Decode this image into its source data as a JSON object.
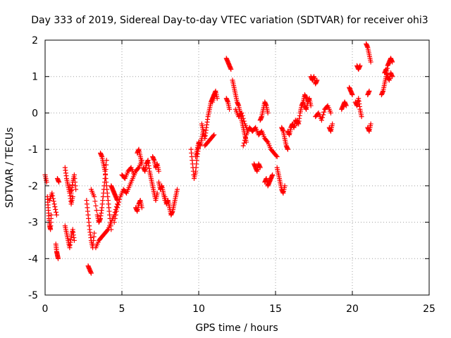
{
  "chart_data": {
    "type": "scatter",
    "title": "Day 333 of 2019, Sidereal Day-to-day VTEC variation (SDTVAR) for receiver ohi3",
    "xlabel": "GPS time / hours",
    "ylabel": "SDTVAR / TECUs",
    "xlim": [
      0,
      25
    ],
    "ylim": [
      -5,
      2
    ],
    "xticks": [
      "0",
      "5",
      "10",
      "15",
      "20",
      "25"
    ],
    "yticks": [
      "-5",
      "-4",
      "-3",
      "-2",
      "-1",
      "0",
      "1",
      "2"
    ],
    "grid": true,
    "marker": "plus",
    "color": "#ff0000",
    "segments": [
      {
        "x": [
          0.0,
          0.1
        ],
        "y": [
          -1.7,
          -1.9
        ]
      },
      {
        "x": [
          0.15,
          0.2,
          0.25,
          0.3,
          0.35,
          0.4
        ],
        "y": [
          -2.3,
          -2.6,
          -2.9,
          -3.1,
          -3.2,
          -2.8
        ]
      },
      {
        "x": [
          0.3,
          0.45,
          0.6,
          0.75
        ],
        "y": [
          -2.4,
          -2.2,
          -2.5,
          -2.8
        ]
      },
      {
        "x": [
          0.7,
          0.75,
          0.8,
          0.85
        ],
        "y": [
          -3.6,
          -3.8,
          -3.9,
          -4.0
        ]
      },
      {
        "x": [
          0.8,
          0.9
        ],
        "y": [
          -1.8,
          -1.9
        ]
      },
      {
        "x": [
          1.3,
          1.4,
          1.5,
          1.6,
          1.7,
          1.8
        ],
        "y": [
          -1.5,
          -1.8,
          -2.0,
          -2.2,
          -2.5,
          -2.3
        ]
      },
      {
        "x": [
          1.3,
          1.4,
          1.5,
          1.6,
          1.7,
          1.8,
          1.9
        ],
        "y": [
          -3.1,
          -3.3,
          -3.5,
          -3.7,
          -3.4,
          -3.2,
          -3.5
        ]
      },
      {
        "x": [
          1.6,
          1.7,
          1.8,
          1.9,
          2.0
        ],
        "y": [
          -2.0,
          -2.2,
          -1.9,
          -1.7,
          -2.1
        ]
      },
      {
        "x": [
          2.8,
          2.9,
          3.0
        ],
        "y": [
          -4.2,
          -4.3,
          -4.4
        ]
      },
      {
        "x": [
          2.7,
          2.8,
          2.9,
          3.0,
          3.1,
          3.2
        ],
        "y": [
          -2.4,
          -2.8,
          -3.2,
          -3.5,
          -3.7,
          -3.3
        ]
      },
      {
        "x": [
          3.0,
          3.2,
          3.4,
          3.5,
          3.6,
          3.7,
          3.8,
          3.9,
          4.0
        ],
        "y": [
          -2.1,
          -2.3,
          -2.8,
          -3.0,
          -2.9,
          -2.6,
          -2.2,
          -1.8,
          -1.3
        ]
      },
      {
        "x": [
          3.6,
          3.7,
          3.8,
          3.9,
          4.0,
          4.1,
          4.2,
          4.3
        ],
        "y": [
          -1.1,
          -1.2,
          -1.4,
          -1.6,
          -2.0,
          -2.4,
          -2.8,
          -3.2
        ]
      },
      {
        "x": [
          3.3,
          3.5,
          3.7,
          3.9,
          4.1,
          4.3,
          4.5,
          4.7
        ],
        "y": [
          -3.7,
          -3.5,
          -3.4,
          -3.3,
          -3.2,
          -3.0,
          -2.8,
          -2.5
        ]
      },
      {
        "x": [
          4.3,
          4.4,
          4.5,
          4.6,
          4.7
        ],
        "y": [
          -2.0,
          -2.1,
          -2.2,
          -2.3,
          -2.4
        ]
      },
      {
        "x": [
          4.5,
          4.7,
          4.9,
          5.1,
          5.3,
          5.5,
          5.7,
          5.9,
          6.1,
          6.3
        ],
        "y": [
          -3.0,
          -2.6,
          -2.3,
          -2.1,
          -2.2,
          -2.0,
          -1.8,
          -1.6,
          -1.5,
          -1.3
        ]
      },
      {
        "x": [
          5.0,
          5.2,
          5.4,
          5.6,
          5.8
        ],
        "y": [
          -1.7,
          -1.8,
          -1.6,
          -1.5,
          -1.7
        ]
      },
      {
        "x": [
          6.0,
          6.1,
          6.2,
          6.3
        ],
        "y": [
          -1.1,
          -1.0,
          -1.2,
          -1.4
        ]
      },
      {
        "x": [
          5.9,
          6.0,
          6.1,
          6.2,
          6.3
        ],
        "y": [
          -2.6,
          -2.7,
          -2.5,
          -2.4,
          -2.6
        ]
      },
      {
        "x": [
          6.4,
          6.5,
          6.6,
          6.7,
          6.8,
          6.9,
          7.0,
          7.1,
          7.2,
          7.3
        ],
        "y": [
          -1.5,
          -1.6,
          -1.4,
          -1.3,
          -1.6,
          -1.8,
          -2.0,
          -2.2,
          -2.4,
          -2.2
        ]
      },
      {
        "x": [
          7.0,
          7.1,
          7.2,
          7.3,
          7.4
        ],
        "y": [
          -1.2,
          -1.3,
          -1.5,
          -1.4,
          -1.6
        ]
      },
      {
        "x": [
          7.4,
          7.5,
          7.6,
          7.7,
          7.8
        ],
        "y": [
          -1.9,
          -2.1,
          -2.0,
          -2.2,
          -2.4
        ]
      },
      {
        "x": [
          7.8,
          7.9,
          8.0,
          8.1,
          8.2,
          8.3,
          8.4,
          8.5,
          8.6
        ],
        "y": [
          -2.3,
          -2.5,
          -2.4,
          -2.6,
          -2.8,
          -2.7,
          -2.5,
          -2.3,
          -2.1
        ]
      },
      {
        "x": [
          9.5,
          9.6,
          9.7,
          9.8,
          9.9,
          10.0
        ],
        "y": [
          -1.0,
          -1.4,
          -1.8,
          -1.6,
          -1.2,
          -0.9
        ]
      },
      {
        "x": [
          9.8,
          9.9,
          10.0,
          10.1,
          10.2,
          10.3
        ],
        "y": [
          -1.2,
          -1.0,
          -0.8,
          -0.9,
          -0.7,
          -0.5
        ]
      },
      {
        "x": [
          10.2,
          10.3,
          10.4,
          10.5,
          10.6,
          10.7,
          10.8,
          10.9,
          11.0
        ],
        "y": [
          -0.3,
          -0.5,
          -0.7,
          -0.4,
          -0.1,
          0.1,
          0.3,
          0.4,
          0.5
        ]
      },
      {
        "x": [
          10.9,
          11.0,
          11.1,
          11.2
        ],
        "y": [
          0.3,
          0.5,
          0.6,
          0.4
        ]
      },
      {
        "x": [
          10.4,
          10.6,
          10.8,
          11.0
        ],
        "y": [
          -0.9,
          -0.8,
          -0.7,
          -0.6
        ]
      },
      {
        "x": [
          11.8,
          11.9,
          12.0,
          12.1
        ],
        "y": [
          1.5,
          1.4,
          1.3,
          1.2
        ]
      },
      {
        "x": [
          11.8,
          11.9,
          12.0
        ],
        "y": [
          0.4,
          0.3,
          0.1
        ]
      },
      {
        "x": [
          12.2,
          12.3,
          12.4,
          12.5,
          12.6,
          12.7,
          12.8,
          12.9,
          13.0,
          13.1
        ],
        "y": [
          0.9,
          0.7,
          0.5,
          0.3,
          0.2,
          0.0,
          -0.2,
          -0.4,
          -0.6,
          -0.8
        ]
      },
      {
        "x": [
          12.4,
          12.6,
          12.8,
          13.0,
          13.2
        ],
        "y": [
          0.1,
          -0.1,
          0.0,
          -0.3,
          -0.5
        ]
      },
      {
        "x": [
          12.9,
          13.1,
          13.3,
          13.5
        ],
        "y": [
          -0.9,
          -0.6,
          -0.4,
          -0.5
        ]
      },
      {
        "x": [
          13.6,
          13.7,
          13.8,
          13.9,
          14.0
        ],
        "y": [
          -1.4,
          -1.5,
          -1.6,
          -1.4,
          -1.5
        ]
      },
      {
        "x": [
          13.5,
          13.7,
          13.9,
          14.1,
          14.3,
          14.5,
          14.7,
          14.9,
          15.1
        ],
        "y": [
          -0.5,
          -0.4,
          -0.6,
          -0.5,
          -0.7,
          -0.8,
          -1.0,
          -1.1,
          -1.2
        ]
      },
      {
        "x": [
          14.0,
          14.1,
          14.2,
          14.3,
          14.4,
          14.5
        ],
        "y": [
          -0.2,
          -0.1,
          0.1,
          0.3,
          0.2,
          0.0
        ]
      },
      {
        "x": [
          14.3,
          14.4,
          14.5,
          14.6,
          14.7,
          14.8
        ],
        "y": [
          -1.9,
          -1.8,
          -2.0,
          -1.9,
          -1.8,
          -1.7
        ]
      },
      {
        "x": [
          15.1,
          15.2,
          15.3,
          15.4,
          15.5,
          15.6
        ],
        "y": [
          -1.5,
          -1.7,
          -1.9,
          -2.1,
          -2.2,
          -2.0
        ]
      },
      {
        "x": [
          15.4,
          15.5,
          15.6,
          15.7,
          15.8
        ],
        "y": [
          -0.4,
          -0.5,
          -0.7,
          -0.9,
          -1.0
        ]
      },
      {
        "x": [
          15.8,
          15.9,
          16.0,
          16.1,
          16.2,
          16.3,
          16.4
        ],
        "y": [
          -0.5,
          -0.6,
          -0.4,
          -0.3,
          -0.4,
          -0.2,
          -0.3
        ]
      },
      {
        "x": [
          16.4,
          16.5,
          16.6,
          16.7,
          16.8,
          16.9,
          17.0
        ],
        "y": [
          -0.2,
          -0.3,
          0.0,
          0.2,
          0.3,
          0.5,
          0.4
        ]
      },
      {
        "x": [
          16.9,
          17.0,
          17.1,
          17.2,
          17.3
        ],
        "y": [
          0.2,
          0.1,
          0.3,
          0.4,
          0.2
        ]
      },
      {
        "x": [
          17.3,
          17.4,
          17.5,
          17.6,
          17.7
        ],
        "y": [
          1.0,
          0.9,
          1.0,
          0.8,
          0.9
        ]
      },
      {
        "x": [
          17.6,
          17.8,
          18.0,
          18.2,
          18.4,
          18.6
        ],
        "y": [
          -0.1,
          0.0,
          -0.2,
          0.1,
          0.2,
          0.0
        ]
      },
      {
        "x": [
          18.5,
          18.6,
          18.7
        ],
        "y": [
          -0.4,
          -0.5,
          -0.3
        ]
      },
      {
        "x": [
          19.3,
          19.4,
          19.5,
          19.6
        ],
        "y": [
          0.1,
          0.2,
          0.3,
          0.2
        ]
      },
      {
        "x": [
          19.8,
          19.9,
          20.0
        ],
        "y": [
          0.7,
          0.6,
          0.5
        ]
      },
      {
        "x": [
          20.3,
          20.4,
          20.5
        ],
        "y": [
          1.3,
          1.2,
          1.3
        ]
      },
      {
        "x": [
          20.2,
          20.3,
          20.4,
          20.5,
          20.6
        ],
        "y": [
          0.3,
          0.2,
          0.4,
          0.1,
          -0.1
        ]
      },
      {
        "x": [
          20.9,
          21.0,
          21.1,
          21.2
        ],
        "y": [
          1.9,
          1.8,
          1.6,
          1.4
        ]
      },
      {
        "x": [
          21.0,
          21.1,
          21.2
        ],
        "y": [
          -0.4,
          -0.5,
          -0.3
        ]
      },
      {
        "x": [
          21.0,
          21.1
        ],
        "y": [
          0.5,
          0.6
        ]
      },
      {
        "x": [
          21.9,
          22.0,
          22.1,
          22.2,
          22.3,
          22.4,
          22.5,
          22.6
        ],
        "y": [
          0.5,
          0.6,
          0.8,
          1.0,
          1.3,
          1.4,
          1.5,
          1.4
        ]
      },
      {
        "x": [
          22.1,
          22.2,
          22.3,
          22.4,
          22.5,
          22.6
        ],
        "y": [
          1.1,
          1.2,
          1.0,
          0.9,
          1.1,
          1.0
        ]
      }
    ]
  }
}
